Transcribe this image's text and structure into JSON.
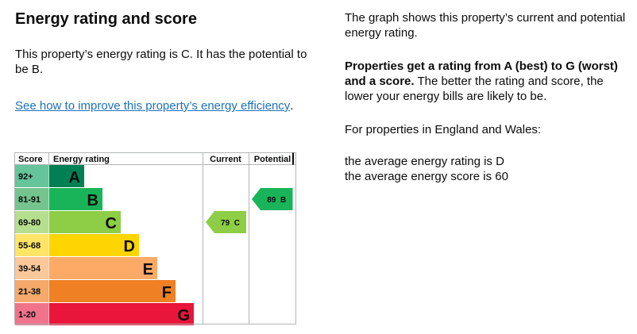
{
  "heading": "Energy rating and score",
  "summary": "This property’s energy rating is C. It has the potential to be B.",
  "improve_link": "See how to improve this property’s energy efficiency",
  "link_suffix": ".",
  "right": {
    "graph_note": "The graph shows this property’s current and potential energy rating.",
    "rating_bold": "Properties get a rating from A (best) to G (worst) and a score.",
    "rating_rest": " The better the rating and score, the lower your energy bills are likely to be.",
    "region_note": "For properties in England and Wales:",
    "avg_rating": "the average energy rating is D",
    "avg_score": "the average energy score is 60"
  },
  "chart_data": {
    "type": "table",
    "headers": {
      "score": "Score",
      "rating": "Energy rating",
      "current": "Current",
      "potential": "Potential"
    },
    "bands": [
      {
        "range": "92+",
        "letter": "A",
        "color": "#008054",
        "score_bg": "#65c49a"
      },
      {
        "range": "81-91",
        "letter": "B",
        "color": "#19b459",
        "score_bg": "#74c48e"
      },
      {
        "range": "69-80",
        "letter": "C",
        "color": "#8dce46",
        "score_bg": "#b5de8e"
      },
      {
        "range": "55-68",
        "letter": "D",
        "color": "#ffd500",
        "score_bg": "#ffe466"
      },
      {
        "range": "39-54",
        "letter": "E",
        "color": "#fcaa65",
        "score_bg": "#fdc89a"
      },
      {
        "range": "21-38",
        "letter": "F",
        "color": "#ef8023",
        "score_bg": "#f5a96b"
      },
      {
        "range": "1-20",
        "letter": "G",
        "color": "#e9153b",
        "score_bg": "#f0728b"
      }
    ],
    "current": {
      "score": 79,
      "letter": "C",
      "label": "79  C",
      "color": "#8dce46"
    },
    "potential": {
      "score": 89,
      "letter": "B",
      "label": "89  B",
      "color": "#19b459"
    }
  }
}
